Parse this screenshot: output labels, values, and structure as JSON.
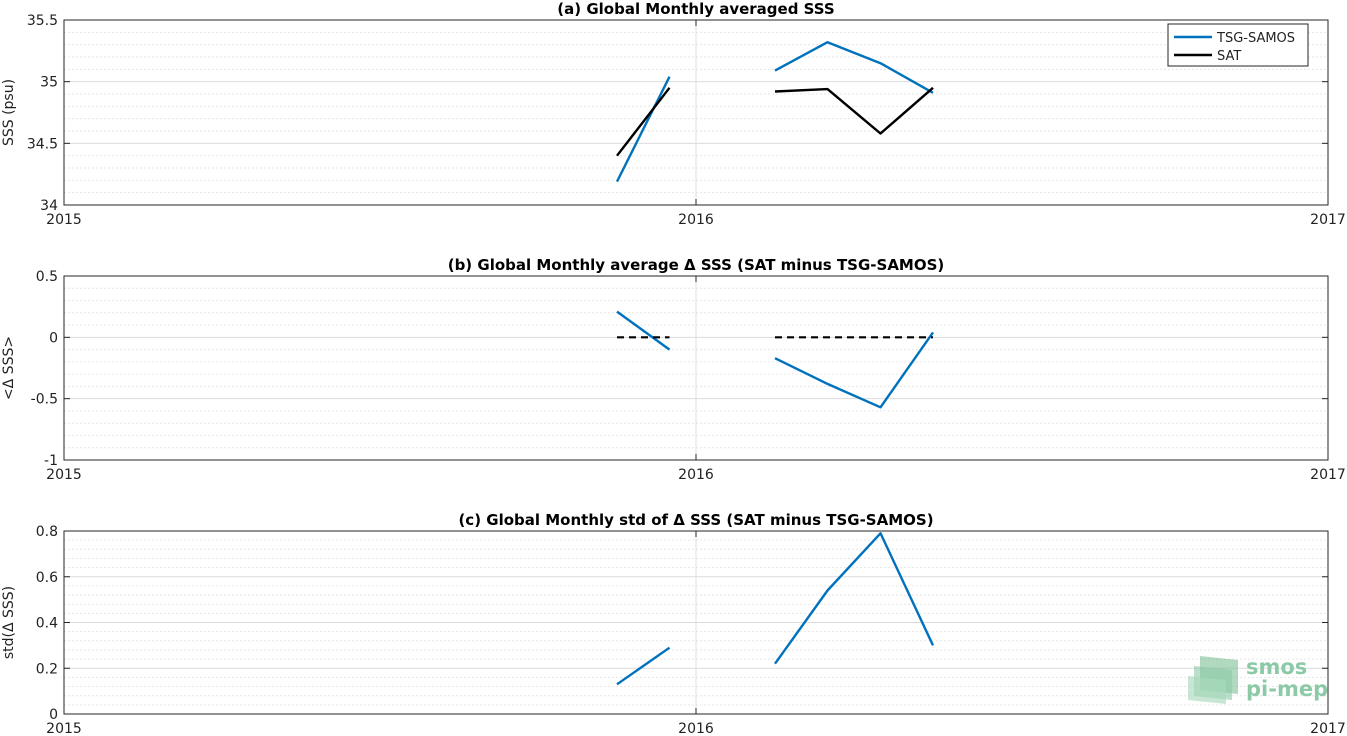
{
  "chart_data": [
    {
      "type": "line",
      "title": "(a) Global Monthly averaged SSS",
      "ylabel": "SSS (psu)",
      "xlabel": "",
      "xlim": [
        2015,
        2017
      ],
      "ylim": [
        34,
        35.5
      ],
      "xticks": [
        2015,
        2016,
        2017
      ],
      "xtick_labels": [
        "2015",
        "2016",
        "2017"
      ],
      "yticks": [
        34,
        34.5,
        35,
        35.5
      ],
      "ytick_labels": [
        "34",
        "34.5",
        "35",
        "35.5"
      ],
      "grid": true,
      "legend": {
        "placement": "top-right",
        "entries": [
          "TSG-SAMOS",
          "SAT"
        ]
      },
      "series": [
        {
          "name": "TSG-SAMOS",
          "color": "#0072bd",
          "style": "solid",
          "segments": [
            {
              "x": [
                2015.875,
                2015.958
              ],
              "y": [
                34.19,
                35.04
              ]
            },
            {
              "x": [
                2016.125,
                2016.208,
                2016.292,
                2016.375
              ],
              "y": [
                35.09,
                35.32,
                35.15,
                34.91
              ]
            }
          ]
        },
        {
          "name": "SAT",
          "color": "#000000",
          "style": "solid",
          "segments": [
            {
              "x": [
                2015.875,
                2015.958
              ],
              "y": [
                34.4,
                34.95
              ]
            },
            {
              "x": [
                2016.125,
                2016.208,
                2016.292,
                2016.375
              ],
              "y": [
                34.92,
                34.94,
                34.58,
                34.95
              ]
            }
          ]
        }
      ]
    },
    {
      "type": "line",
      "title": "(b) Global Monthly average Δ SSS (SAT minus TSG-SAMOS)",
      "ylabel": "<Δ SSS>",
      "xlabel": "",
      "xlim": [
        2015,
        2017
      ],
      "ylim": [
        -1,
        0.5
      ],
      "xticks": [
        2015,
        2016,
        2017
      ],
      "xtick_labels": [
        "2015",
        "2016",
        "2017"
      ],
      "yticks": [
        -1,
        -0.5,
        0,
        0.5
      ],
      "ytick_labels": [
        "-1",
        "-0.5",
        "0",
        "0.5"
      ],
      "grid": true,
      "series": [
        {
          "color": "#0072bd",
          "style": "solid",
          "segments": [
            {
              "x": [
                2015.875,
                2015.958
              ],
              "y": [
                0.21,
                -0.1
              ]
            },
            {
              "x": [
                2016.125,
                2016.208,
                2016.292,
                2016.375
              ],
              "y": [
                -0.17,
                -0.38,
                -0.57,
                0.04
              ]
            }
          ]
        },
        {
          "color": "#000000",
          "style": "dashed",
          "segments": [
            {
              "x": [
                2015.875,
                2015.958
              ],
              "y": [
                0,
                0
              ]
            },
            {
              "x": [
                2016.125,
                2016.375
              ],
              "y": [
                0,
                0
              ]
            }
          ]
        }
      ]
    },
    {
      "type": "line",
      "title": "(c) Global Monthly std of Δ SSS (SAT minus TSG-SAMOS)",
      "ylabel": "std(Δ SSS)",
      "xlabel": "",
      "xlim": [
        2015,
        2017
      ],
      "ylim": [
        0,
        0.8
      ],
      "xticks": [
        2015,
        2016,
        2017
      ],
      "xtick_labels": [
        "2015",
        "2016",
        "2017"
      ],
      "yticks": [
        0,
        0.2,
        0.4,
        0.6,
        0.8
      ],
      "ytick_labels": [
        "0",
        "0.2",
        "0.4",
        "0.6",
        "0.8"
      ],
      "grid": true,
      "series": [
        {
          "color": "#0072bd",
          "style": "solid",
          "segments": [
            {
              "x": [
                2015.875,
                2015.958
              ],
              "y": [
                0.13,
                0.29
              ]
            },
            {
              "x": [
                2016.125,
                2016.208,
                2016.292,
                2016.375
              ],
              "y": [
                0.22,
                0.54,
                0.79,
                0.3
              ]
            }
          ]
        }
      ]
    }
  ],
  "logo": {
    "line1": "smos",
    "line2": "pi-mep",
    "color": "#8cc9a6"
  }
}
